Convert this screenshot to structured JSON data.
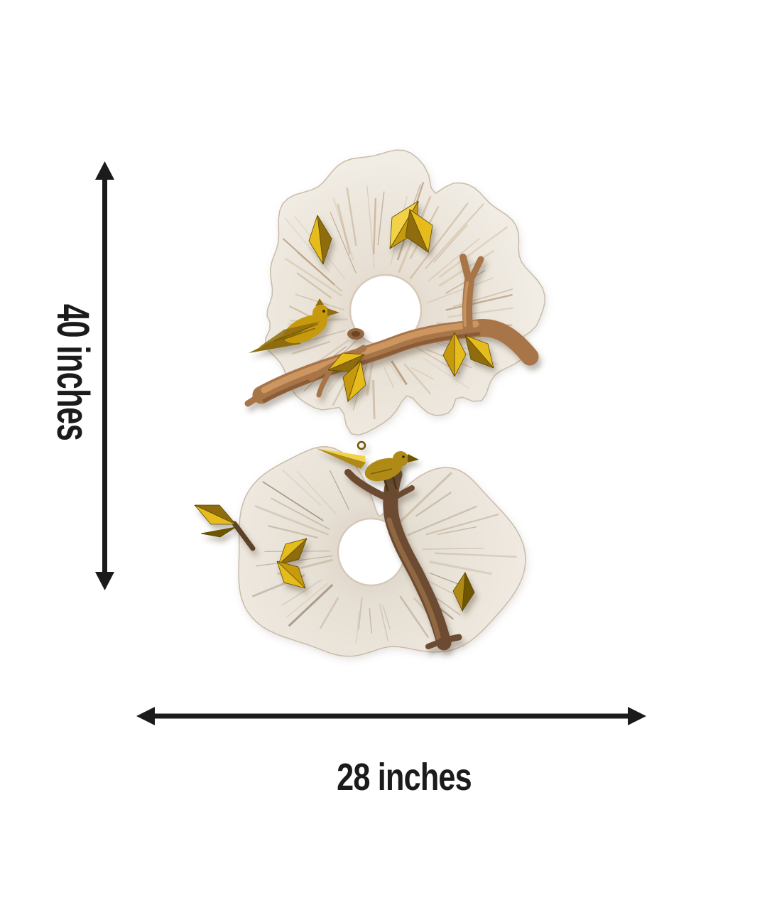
{
  "page": {
    "background": "#ffffff"
  },
  "annotation": {
    "height": {
      "label": "40 inches",
      "value": 40,
      "unit": "inches",
      "orientation": "vertical",
      "icon": "double-headed-vertical-arrow"
    },
    "width": {
      "label": "28 inches",
      "value": 28,
      "unit": "inches",
      "orientation": "horizontal",
      "icon": "double-headed-horizontal-arrow"
    }
  },
  "artwork": {
    "description": "Set of 2 distressed cream carved round wall-art discs with center holes, copper branches, golden metal leaves and perched golden birds",
    "pieces": [
      {
        "name": "top-disc",
        "elements": [
          "carved cream disc with center hole",
          "copper forked branch",
          "golden bird perched facing right",
          "golden faceted leaves"
        ]
      },
      {
        "name": "bottom-disc",
        "elements": [
          "carved cream C-shaped disc with center hole",
          "dark bronze curved branch",
          "golden bird with long tail feather and hanging loop",
          "golden leaves on twigs"
        ]
      }
    ]
  },
  "colors": {
    "background": "#ffffff",
    "ink": "#1b1b1b",
    "disc-base": "#ece6dd",
    "disc-edge": "#c9bca9",
    "streak": "#b49776",
    "copper": "#a8744a",
    "copper-hi": "#d09a64",
    "copper-dark": "#7b4e2c",
    "branch-dark": "#6d4c30",
    "branch-dark-hi": "#926c46",
    "gold": "#c79a0e",
    "gold-bright": "#e6bc1f",
    "gold-deep": "#8f6c08",
    "gold-pale": "#f2d24a",
    "olive-gold": "#b08a12",
    "olive-deep": "#6e5406"
  }
}
